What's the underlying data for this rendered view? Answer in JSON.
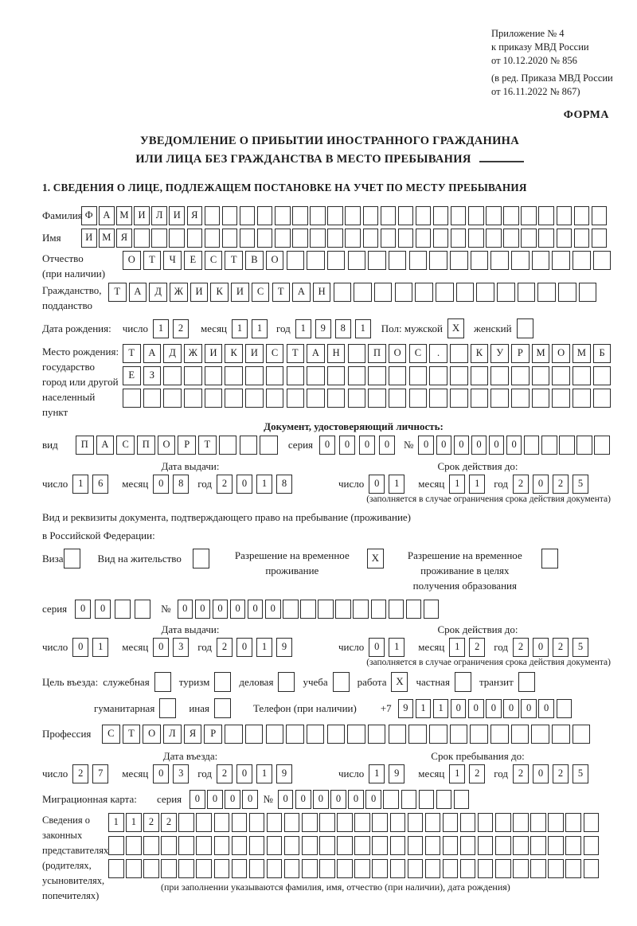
{
  "header": {
    "lines": [
      "Приложение № 4",
      "к приказу МВД России",
      "от 10.12.2020 № 856"
    ],
    "amendment": [
      "(в ред. Приказа МВД России",
      "от 16.11.2022 № 867)"
    ],
    "form_label": "ФОРМА"
  },
  "title": {
    "line1": "УВЕДОМЛЕНИЕ О ПРИБЫТИИ ИНОСТРАННОГО ГРАЖДАНИНА",
    "line2": "ИЛИ ЛИЦА БЕЗ ГРАЖДАНСТВА В МЕСТО ПРЕБЫВАНИЯ"
  },
  "section1_heading": "1. СВЕДЕНИЯ О ЛИЦЕ, ПОДЛЕЖАЩЕМ ПОСТАНОВКЕ НА УЧЕТ ПО МЕСТУ ПРЕБЫВАНИЯ",
  "labels": {
    "surname": "Фамилия",
    "given_name": "Имя",
    "patronymic_l1": "Отчество",
    "patronymic_l2": "(при наличии)",
    "citizenship_l1": "Гражданство,",
    "citizenship_l2": "подданство",
    "birth_date": "Дата рождения:",
    "day": "число",
    "month": "месяц",
    "year": "год",
    "birth_place_lines": {
      "0": "Место рождения:",
      "1": "государство",
      "2": "город или другой",
      "3": "населенный пункт"
    },
    "identity_doc_heading": "Документ, удостоверяющий личность:",
    "doc_kind": "вид",
    "series": "серия",
    "number_sign": "№",
    "issue_date": "Дата выдачи:",
    "valid_until": "Срок действия до:",
    "valid_note": "(заполняется в случае ограничения срока действия документа)",
    "right_doc_l1": "Вид и реквизиты документа, подтверждающего право на пребывание (проживание)",
    "right_doc_l2": "в Российской Федерации:",
    "purpose_prefix": "Цель въезда:",
    "phone_label": "Телефон (при наличии)",
    "phone_prefix": "+7",
    "profession": "Профессия",
    "entry_date": "Дата въезда:",
    "stay_until": "Срок пребывания до:",
    "migration_card": "Миграционная карта:",
    "representatives_lines": {
      "0": "Сведения о",
      "1": "законных",
      "2": "представителях",
      "3": "(родителях,",
      "4": "усыновителях,",
      "5": "попечителях)"
    },
    "representatives_note": "(при заполнении указываются фамилия, имя, отчество (при наличии), дата рождения)"
  },
  "gender": {
    "male_label": "Пол: мужской",
    "male_checked": true,
    "female_label": "женский",
    "female_checked": false
  },
  "permit": {
    "options": [
      {
        "label": "Виза",
        "checked": false
      },
      {
        "label": "Вид на жительство",
        "checked": false
      },
      {
        "label": "Разрешение на временное проживание",
        "checked": true
      },
      {
        "label": "Разрешение на временное проживание в целях получения образования",
        "checked": false
      }
    ]
  },
  "purpose": {
    "options": [
      {
        "label": "служебная",
        "checked": false
      },
      {
        "label": "туризм",
        "checked": false
      },
      {
        "label": "деловая",
        "checked": false
      },
      {
        "label": "учеба",
        "checked": false
      },
      {
        "label": "работа",
        "checked": true
      },
      {
        "label": "частная",
        "checked": false
      },
      {
        "label": "транзит",
        "checked": false
      },
      {
        "label": "гуманитарная",
        "checked": false
      },
      {
        "label": "иная",
        "checked": false
      }
    ]
  },
  "fields": {
    "surname": {
      "value": "ФАМИЛИЯ",
      "length": 30
    },
    "given_name": {
      "value": "ИМЯ",
      "length": 30
    },
    "patronymic": {
      "value": "ОТЧЕСТВО",
      "length": 24
    },
    "citizenship": {
      "value": "ТАДЖИКИСТАН",
      "length": 24
    },
    "birth_place_1": {
      "value": "ТАДЖИКИСТАН ПОС. КУРМОМБ",
      "length": 24
    },
    "birth_place_2": {
      "value": "ЕЗ",
      "length": 24
    },
    "birth_place_3": {
      "value": "",
      "length": 24
    },
    "doc_type": {
      "value": "ПАСПОРТ",
      "length": 10
    },
    "doc_series": {
      "value": "0000",
      "length": 4
    },
    "doc_number": {
      "value": "000000",
      "length": 11
    },
    "doc_issue": {
      "day": {
        "value": "16",
        "length": 2
      },
      "month": {
        "value": "08",
        "length": 2
      },
      "year": {
        "value": "2018",
        "length": 4
      }
    },
    "doc_valid": {
      "day": {
        "value": "01",
        "length": 2
      },
      "month": {
        "value": "11",
        "length": 2
      },
      "year": {
        "value": "2025",
        "length": 4
      }
    },
    "res_series": {
      "value": "00",
      "length": 4
    },
    "res_number": {
      "value": "000000",
      "length": 15
    },
    "res_issue": {
      "day": {
        "value": "01",
        "length": 2
      },
      "month": {
        "value": "03",
        "length": 2
      },
      "year": {
        "value": "2019",
        "length": 4
      }
    },
    "res_valid": {
      "day": {
        "value": "01",
        "length": 2
      },
      "month": {
        "value": "12",
        "length": 2
      },
      "year": {
        "value": "2025",
        "length": 4
      }
    },
    "phone": {
      "value": "911000000",
      "length": 10
    },
    "profession": {
      "value": "СТОЛЯР",
      "length": 24
    },
    "entry_date": {
      "day": {
        "value": "27",
        "length": 2
      },
      "month": {
        "value": "03",
        "length": 2
      },
      "year": {
        "value": "2019",
        "length": 4
      }
    },
    "stay_until": {
      "day": {
        "value": "19",
        "length": 2
      },
      "month": {
        "value": "12",
        "length": 2
      },
      "year": {
        "value": "2025",
        "length": 4
      }
    },
    "mig_series": {
      "value": "0000",
      "length": 4
    },
    "mig_number": {
      "value": "000000",
      "length": 11
    },
    "rep_row_1": {
      "value": "1122",
      "length": 28
    },
    "rep_row_2": {
      "value": "",
      "length": 28
    },
    "rep_row_3": {
      "value": "",
      "length": 28
    }
  }
}
